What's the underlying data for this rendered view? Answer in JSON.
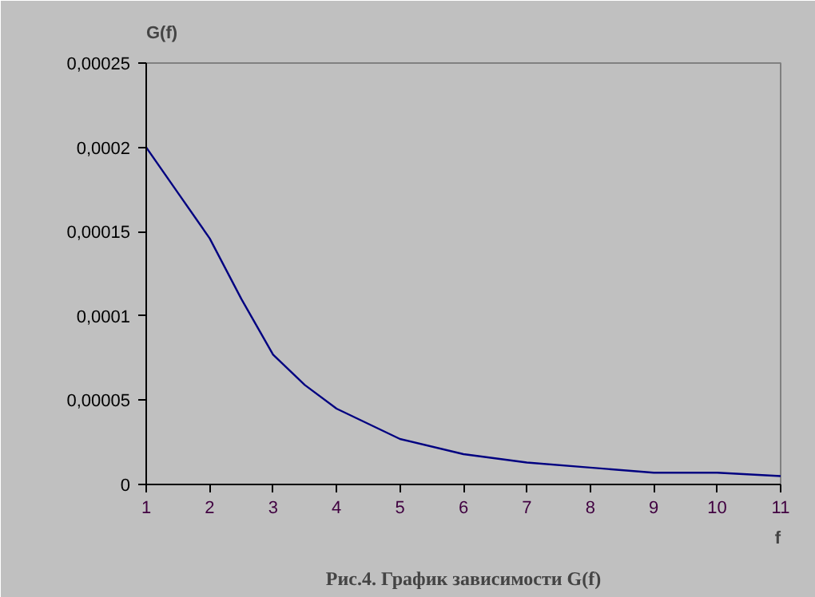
{
  "chart_data": {
    "type": "line",
    "title": "Рис.4. График зависимости G(f)",
    "xlabel": "f",
    "ylabel": "G(f)",
    "x": [
      1,
      1.5,
      2,
      2.5,
      3,
      3.5,
      4,
      5,
      6,
      7,
      8,
      9,
      10,
      11
    ],
    "series": [
      {
        "color": "#000080",
        "values": [
          0.0002,
          0.000173,
          0.000146,
          0.00011,
          7.7e-05,
          5.9e-05,
          4.5e-05,
          2.7e-05,
          1.8e-05,
          1.3e-05,
          1e-05,
          7e-06,
          7e-06,
          5e-06
        ]
      }
    ],
    "xlim": [
      1,
      11
    ],
    "xticks": [
      1,
      2,
      3,
      4,
      5,
      6,
      7,
      8,
      9,
      10,
      11
    ],
    "ylim": [
      0,
      0.00025
    ],
    "yticks": [
      {
        "value": 0,
        "label": "0"
      },
      {
        "value": 5e-05,
        "label": "0,00005"
      },
      {
        "value": 0.0001,
        "label": "0,0001"
      },
      {
        "value": 0.00015,
        "label": "0,00015"
      },
      {
        "value": 0.0002,
        "label": "0,0002"
      },
      {
        "value": 0.00025,
        "label": "0,00025"
      }
    ],
    "grid": false,
    "marker": "none",
    "line_style": "solid"
  }
}
